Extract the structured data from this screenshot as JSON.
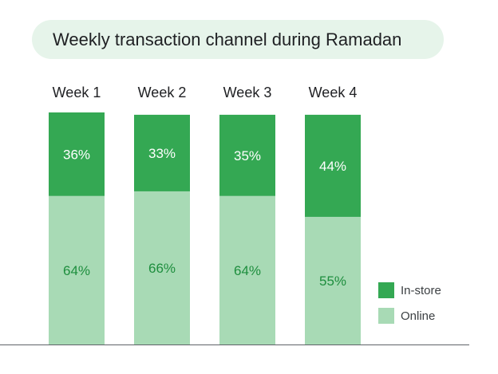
{
  "colors": {
    "in_store": "#34a853",
    "online": "#a8dab5",
    "in_store_label": "#ffffff",
    "online_label": "#1e8e3e",
    "title_bg": "#e6f4ea",
    "axis": "#5f6368"
  },
  "chart_data": {
    "type": "bar",
    "stacked": true,
    "title": "Weekly transaction channel during Ramadan",
    "categories": [
      "Week 1",
      "Week 2",
      "Week 3",
      "Week 4"
    ],
    "series": [
      {
        "name": "Online",
        "values": [
          64,
          66,
          64,
          55
        ],
        "labels": [
          "64%",
          "66%",
          "64%",
          "55%"
        ]
      },
      {
        "name": "In-store",
        "values": [
          36,
          33,
          35,
          44
        ],
        "labels": [
          "36%",
          "33%",
          "35%",
          "44%"
        ]
      }
    ],
    "ylim": [
      0,
      100
    ],
    "legend_position": "right",
    "grid": false
  }
}
